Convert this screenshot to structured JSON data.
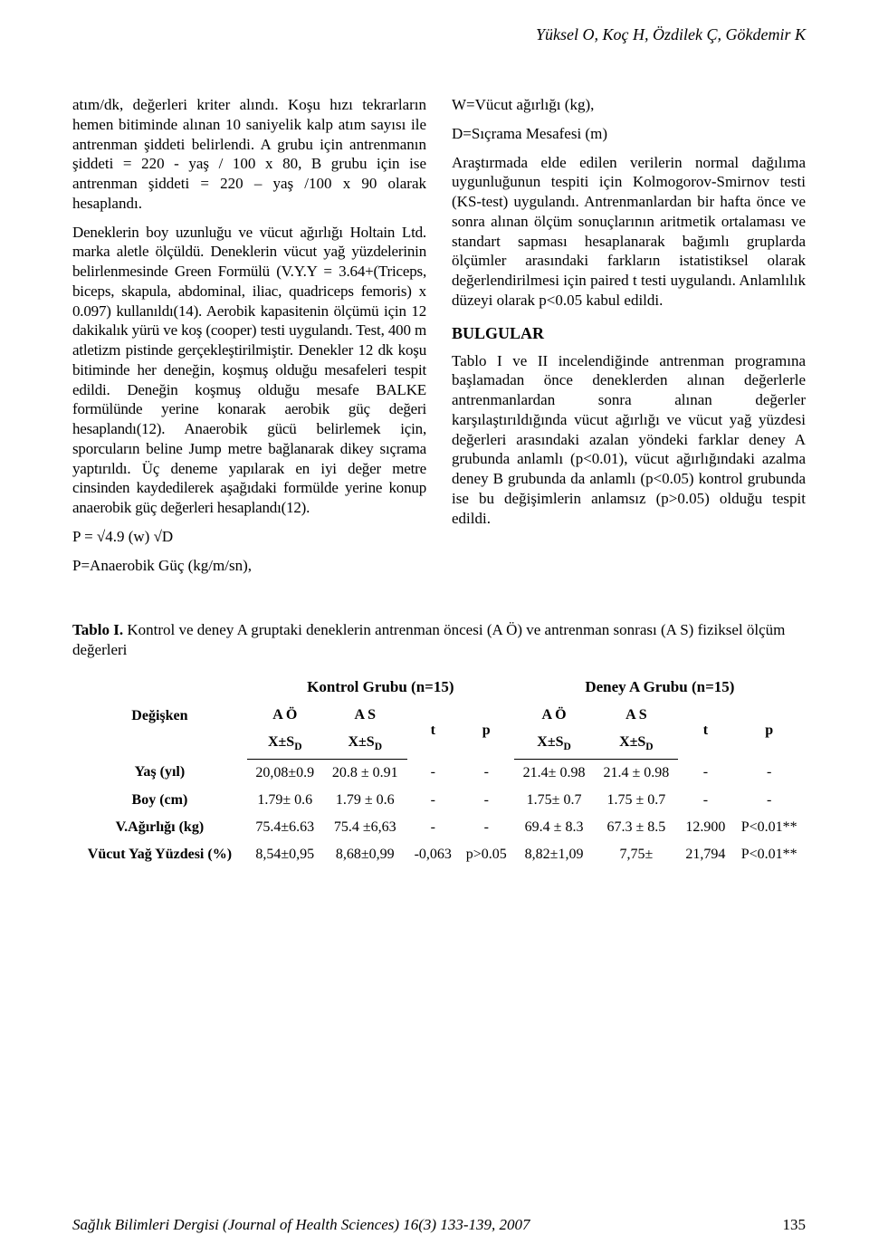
{
  "running_head": "Yüksel O, Koç H, Özdilek Ç, Gökdemir K",
  "left_col": {
    "p1": "atım/dk, değerleri kriter alındı. Koşu hızı tekrarların hemen bitiminde alınan 10 saniyelik kalp atım sayısı ile antrenman şiddeti belirlendi. A grubu için antrenmanın şiddeti = 220 - yaş / 100 x 80, B grubu için ise antrenman şiddeti = 220 – yaş /100 x 90 olarak hesaplandı.",
    "p2": "Deneklerin boy uzunluğu ve vücut ağırlığı Holtain Ltd. marka aletle ölçüldü. Deneklerin vücut yağ yüzdelerinin belirlenmesinde Green Formülü (V.Y.Y = 3.64+(Triceps, biceps, skapula, abdominal, iliac, quadriceps femoris) x 0.097) kullanıldı(14). Aerobik kapasitenin ölçümü için 12 dakikalık yürü ve koş (cooper) testi uygulandı. Test, 400 m atletizm pistinde gerçekleştirilmiştir. Denekler 12 dk koşu bitiminde her deneğin, koşmuş olduğu mesafeleri tespit edildi. Deneğin koşmuş olduğu mesafe BALKE formülünde yerine konarak aerobik güç değeri hesaplandı(12). Anaerobik gücü belirlemek için, sporcuların beline Jump metre bağlanarak dikey sıçrama yaptırıldı. Üç deneme yapılarak en iyi değer metre cinsinden kaydedilerek aşağıdaki formülde yerine konup anaerobik güç değerleri hesaplandı(12).",
    "eq1": "P = √4.9 (w) √D",
    "eq2": "P=Anaerobik Güç (kg/m/sn),"
  },
  "right_col": {
    "eq3": "W=Vücut ağırlığı (kg),",
    "eq4": "D=Sıçrama Mesafesi (m)",
    "p3": "Araştırmada elde edilen verilerin normal dağılıma uygunluğunun tespiti için Kolmogorov-Smirnov testi (KS-test) uygulandı. Antrenmanlardan bir hafta önce ve sonra alınan ölçüm sonuçlarının aritmetik ortalaması ve standart sapması hesaplanarak bağımlı gruplarda ölçümler arasındaki farkların istatistiksel olarak değerlendirilmesi için paired t testi uygulandı. Anlamlılık düzeyi olarak p<0.05 kabul edildi.",
    "sec_title": "BULGULAR",
    "p4": "Tablo I ve II incelendiğinde antrenman programına başlamadan önce deneklerden alınan değerlerle antrenmanlardan sonra alınan değerler karşılaştırıldığında vücut ağırlığı ve vücut yağ yüzdesi değerleri arasındaki azalan yöndeki farklar deney A grubunda anlamlı (p<0.01), vücut ağırlığındaki azalma deney B grubunda da anlamlı (p<0.05) kontrol grubunda ise bu değişimlerin anlamsız (p>0.05) olduğu tespit edildi."
  },
  "table": {
    "caption_bold": "Tablo I.",
    "caption_rest": " Kontrol ve deney A gruptaki deneklerin antrenman öncesi (A Ö) ve antrenman sonrası (A S) fiziksel ölçüm değerleri",
    "var_label": "Değişken",
    "group_a": "Kontrol Grubu (n=15)",
    "group_b": "Deney A Grubu (n=15)",
    "sub_ao": "A Ö",
    "sub_as": "A S",
    "sub_t": "t",
    "sub_p": "p",
    "xsd_plain": "X±S",
    "xsd_sub": "D",
    "rows": [
      {
        "label": "Yaş (yıl)",
        "kao": "20,08±0.9",
        "kas": "20.8 ± 0.91",
        "kt": "-",
        "kp": "-",
        "dao": "21.4± 0.98",
        "das": "21.4 ± 0.98",
        "dt": "-",
        "dp": "-"
      },
      {
        "label": "Boy (cm)",
        "kao": "1.79± 0.6",
        "kas": "1.79 ± 0.6",
        "kt": "-",
        "kp": "-",
        "dao": "1.75± 0.7",
        "das": "1.75 ± 0.7",
        "dt": "-",
        "dp": "-"
      },
      {
        "label": "V.Ağırlığı (kg)",
        "kao": "75.4±6.63",
        "kas": "75.4 ±6,63",
        "kt": "-",
        "kp": "-",
        "dao": "69.4 ± 8.3",
        "das": "67.3 ± 8.5",
        "dt": "12.900",
        "dp": "P<0.01**"
      },
      {
        "label": "Vücut Yağ Yüzdesi (%)",
        "kao": "8,54±0,95",
        "kas": "8,68±0,99",
        "kt": "-0,063",
        "kp": "p>0.05",
        "dao": "8,82±1,09",
        "das": "7,75±",
        "dt": "21,794",
        "dp": "P<0.01**"
      }
    ]
  },
  "footer": {
    "journal": "Sağlık Bilimleri Dergisi (Journal of Health Sciences) 16(3) 133-139, 2007",
    "page": "135"
  }
}
